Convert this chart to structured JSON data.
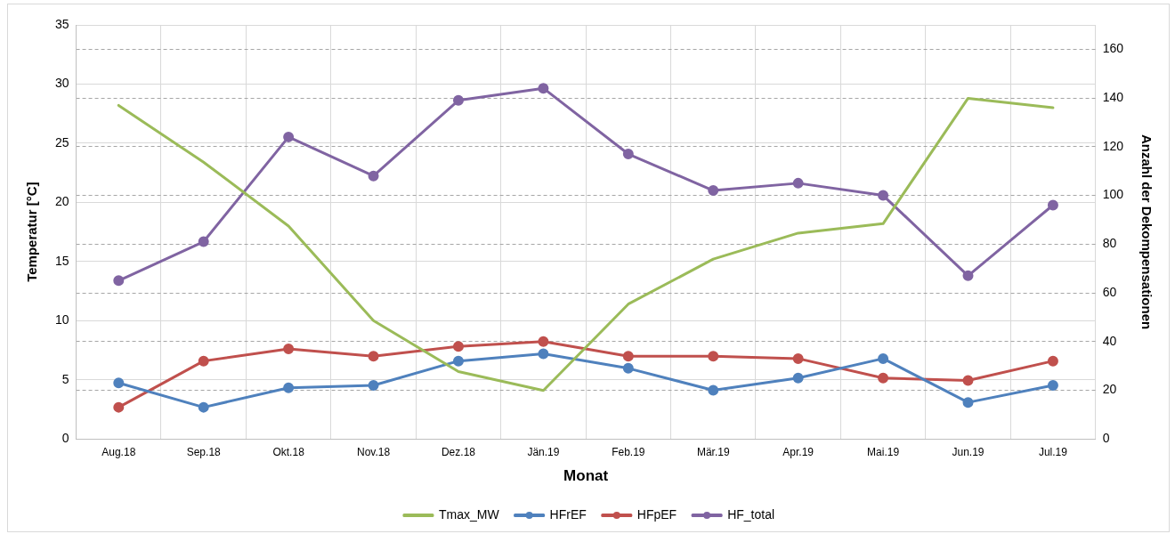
{
  "chart_data": {
    "type": "line",
    "xlabel": "Monat",
    "ylabel": "Temperatur [°C]",
    "y2label": "Anzahl der Dekompensationen",
    "categories": [
      "Aug.18",
      "Sep.18",
      "Okt.18",
      "Nov.18",
      "Dez.18",
      "Jän.19",
      "Feb.19",
      "Mär.19",
      "Apr.19",
      "Mai.19",
      "Jun.19",
      "Jul.19"
    ],
    "series": [
      {
        "name": "Tmax_MW",
        "color": "#9bbb59",
        "marker": "none",
        "values": [
          28.2,
          23.4,
          18.0,
          10.0,
          5.7,
          4.1,
          11.4,
          15.2,
          17.4,
          18.2,
          28.8,
          28.0
        ]
      },
      {
        "name": "HFrEF",
        "color": "#4f81bd",
        "axis": "y2",
        "values": [
          23,
          13,
          21,
          22,
          32,
          35,
          29,
          20,
          25,
          33,
          15,
          22
        ]
      },
      {
        "name": "HFpEF",
        "color": "#c0504d",
        "axis": "y2",
        "values": [
          13,
          32,
          37,
          34,
          38,
          40,
          34,
          34,
          33,
          25,
          24,
          32
        ]
      },
      {
        "name": "HF_total",
        "color": "#8064a2",
        "axis": "y2",
        "values": [
          65,
          81,
          124,
          108,
          139,
          144,
          117,
          102,
          105,
          100,
          67,
          96
        ]
      }
    ],
    "ylim": [
      0,
      35
    ],
    "yticks": [
      0,
      5,
      10,
      15,
      20,
      25,
      30,
      35
    ],
    "y2lim": [
      0,
      170
    ],
    "y2ticks": [
      0,
      20,
      40,
      60,
      80,
      100,
      120,
      140,
      160
    ],
    "grid": true,
    "legend": "bottom",
    "marker": "circle",
    "line_style": "solid"
  }
}
